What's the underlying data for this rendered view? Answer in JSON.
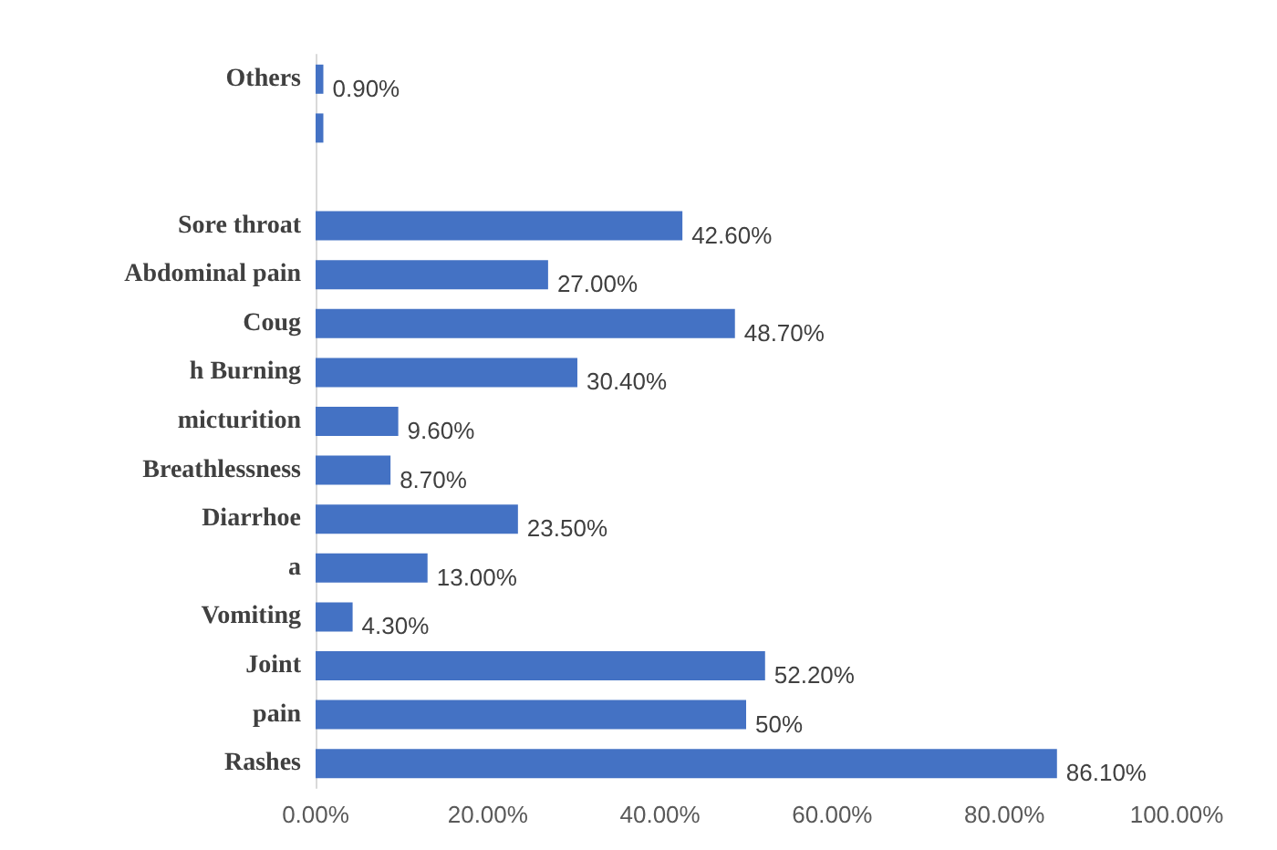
{
  "chart_data": {
    "type": "bar",
    "orientation": "horizontal",
    "categories": [
      "Others",
      null,
      null,
      "Sore throat",
      "Abdominal pain",
      "Coug",
      "h Burning",
      "micturition",
      "Breathlessness",
      "Diarrhoe",
      "a",
      "Vomiting",
      "Joint",
      "pain",
      "Rashes"
    ],
    "values": [
      0.9,
      0.9,
      null,
      42.6,
      27.0,
      48.7,
      30.4,
      9.6,
      8.7,
      23.5,
      13.0,
      4.3,
      52.2,
      50,
      86.1
    ],
    "value_labels": [
      "0.90%",
      null,
      null,
      "42.60%",
      "27.00%",
      "48.70%",
      "30.40%",
      "9.60%",
      "8.70%",
      "23.50%",
      "13.00%",
      "4.30%",
      "52.20%",
      "50%",
      "86.10%"
    ],
    "color": "#4472c4",
    "xlim": [
      0,
      100
    ],
    "xticks": [
      {
        "value": 0,
        "label": "0.00%"
      },
      {
        "value": 20,
        "label": "20.00%"
      },
      {
        "value": 40,
        "label": "40.00%"
      },
      {
        "value": 60,
        "label": "60.00%"
      },
      {
        "value": 80,
        "label": "80.00%"
      },
      {
        "value": 100,
        "label": "100.00%"
      }
    ],
    "data_labels": false
  }
}
